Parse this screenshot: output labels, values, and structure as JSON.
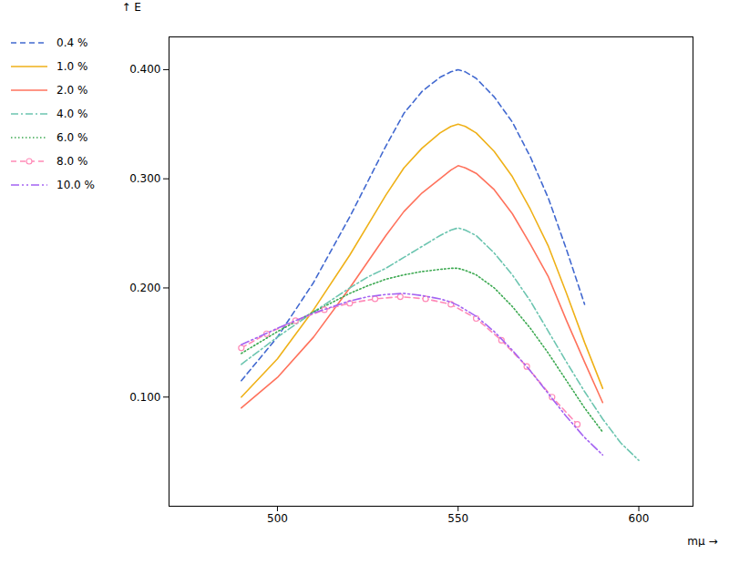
{
  "chart_data": {
    "type": "line",
    "xlabel": "mμ",
    "ylabel": "E",
    "xlim": [
      470,
      615
    ],
    "ylim": [
      0.0,
      0.43
    ],
    "xticks": [
      500,
      550,
      600
    ],
    "yticks": [
      {
        "value": 0.1,
        "label": "0.100"
      },
      {
        "value": 0.2,
        "label": "0.200"
      },
      {
        "value": 0.3,
        "label": "0.300"
      },
      {
        "value": 0.4,
        "label": "0.400"
      }
    ],
    "grid": false,
    "legend": "left",
    "series": [
      {
        "name": "0.4 %",
        "line_style": "dashed",
        "x": [
          490,
          500,
          510,
          520,
          530,
          535,
          540,
          545,
          548,
          550,
          552,
          555,
          560,
          565,
          570,
          575,
          580,
          585
        ],
        "values": [
          0.115,
          0.155,
          0.205,
          0.265,
          0.33,
          0.36,
          0.38,
          0.393,
          0.398,
          0.4,
          0.398,
          0.392,
          0.375,
          0.352,
          0.32,
          0.282,
          0.235,
          0.185
        ]
      },
      {
        "name": "1.0 %",
        "line_style": "solid",
        "x": [
          490,
          500,
          510,
          520,
          530,
          535,
          540,
          545,
          548,
          550,
          552,
          555,
          560,
          565,
          570,
          575,
          580,
          585,
          590
        ],
        "values": [
          0.1,
          0.135,
          0.18,
          0.23,
          0.285,
          0.31,
          0.328,
          0.342,
          0.348,
          0.35,
          0.348,
          0.342,
          0.325,
          0.302,
          0.272,
          0.238,
          0.195,
          0.15,
          0.108
        ]
      },
      {
        "name": "2.0 %",
        "line_style": "solid",
        "x": [
          490,
          500,
          510,
          520,
          530,
          535,
          540,
          545,
          548,
          550,
          552,
          555,
          560,
          565,
          570,
          575,
          580,
          585,
          590
        ],
        "values": [
          0.09,
          0.118,
          0.155,
          0.2,
          0.248,
          0.27,
          0.287,
          0.3,
          0.308,
          0.312,
          0.31,
          0.305,
          0.29,
          0.268,
          0.24,
          0.21,
          0.17,
          0.132,
          0.095
        ]
      },
      {
        "name": "4.0 %",
        "line_style": "dashdot",
        "x": [
          490,
          500,
          510,
          520,
          525,
          530,
          535,
          540,
          545,
          548,
          550,
          552,
          555,
          560,
          565,
          570,
          575,
          580,
          585,
          590,
          595,
          600
        ],
        "values": [
          0.13,
          0.155,
          0.178,
          0.2,
          0.21,
          0.218,
          0.228,
          0.238,
          0.248,
          0.253,
          0.255,
          0.253,
          0.248,
          0.232,
          0.212,
          0.188,
          0.16,
          0.132,
          0.105,
          0.08,
          0.058,
          0.042
        ]
      },
      {
        "name": "6.0 %",
        "line_style": "dotted",
        "x": [
          490,
          500,
          510,
          520,
          525,
          530,
          535,
          540,
          545,
          548,
          550,
          552,
          555,
          560,
          565,
          570,
          575,
          580,
          585,
          590
        ],
        "values": [
          0.14,
          0.16,
          0.178,
          0.195,
          0.202,
          0.208,
          0.212,
          0.215,
          0.217,
          0.218,
          0.218,
          0.216,
          0.212,
          0.2,
          0.183,
          0.163,
          0.14,
          0.115,
          0.09,
          0.068
        ]
      },
      {
        "name": "8.0 %",
        "line_style": "dashed",
        "marker": "circle",
        "x": [
          490,
          497,
          505,
          513,
          520,
          527,
          534,
          541,
          548,
          555,
          562,
          569,
          576,
          583
        ],
        "values": [
          0.145,
          0.158,
          0.17,
          0.18,
          0.186,
          0.19,
          0.192,
          0.19,
          0.185,
          0.172,
          0.152,
          0.128,
          0.1,
          0.075
        ]
      },
      {
        "name": "10.0 %",
        "line_style": "dashdotdot",
        "x": [
          490,
          500,
          510,
          520,
          525,
          530,
          535,
          540,
          545,
          548,
          550,
          552,
          555,
          560,
          565,
          570,
          575,
          580,
          585,
          590
        ],
        "values": [
          0.148,
          0.163,
          0.177,
          0.188,
          0.192,
          0.194,
          0.195,
          0.193,
          0.19,
          0.187,
          0.184,
          0.18,
          0.174,
          0.16,
          0.143,
          0.124,
          0.103,
          0.082,
          0.063,
          0.047
        ]
      }
    ]
  }
}
